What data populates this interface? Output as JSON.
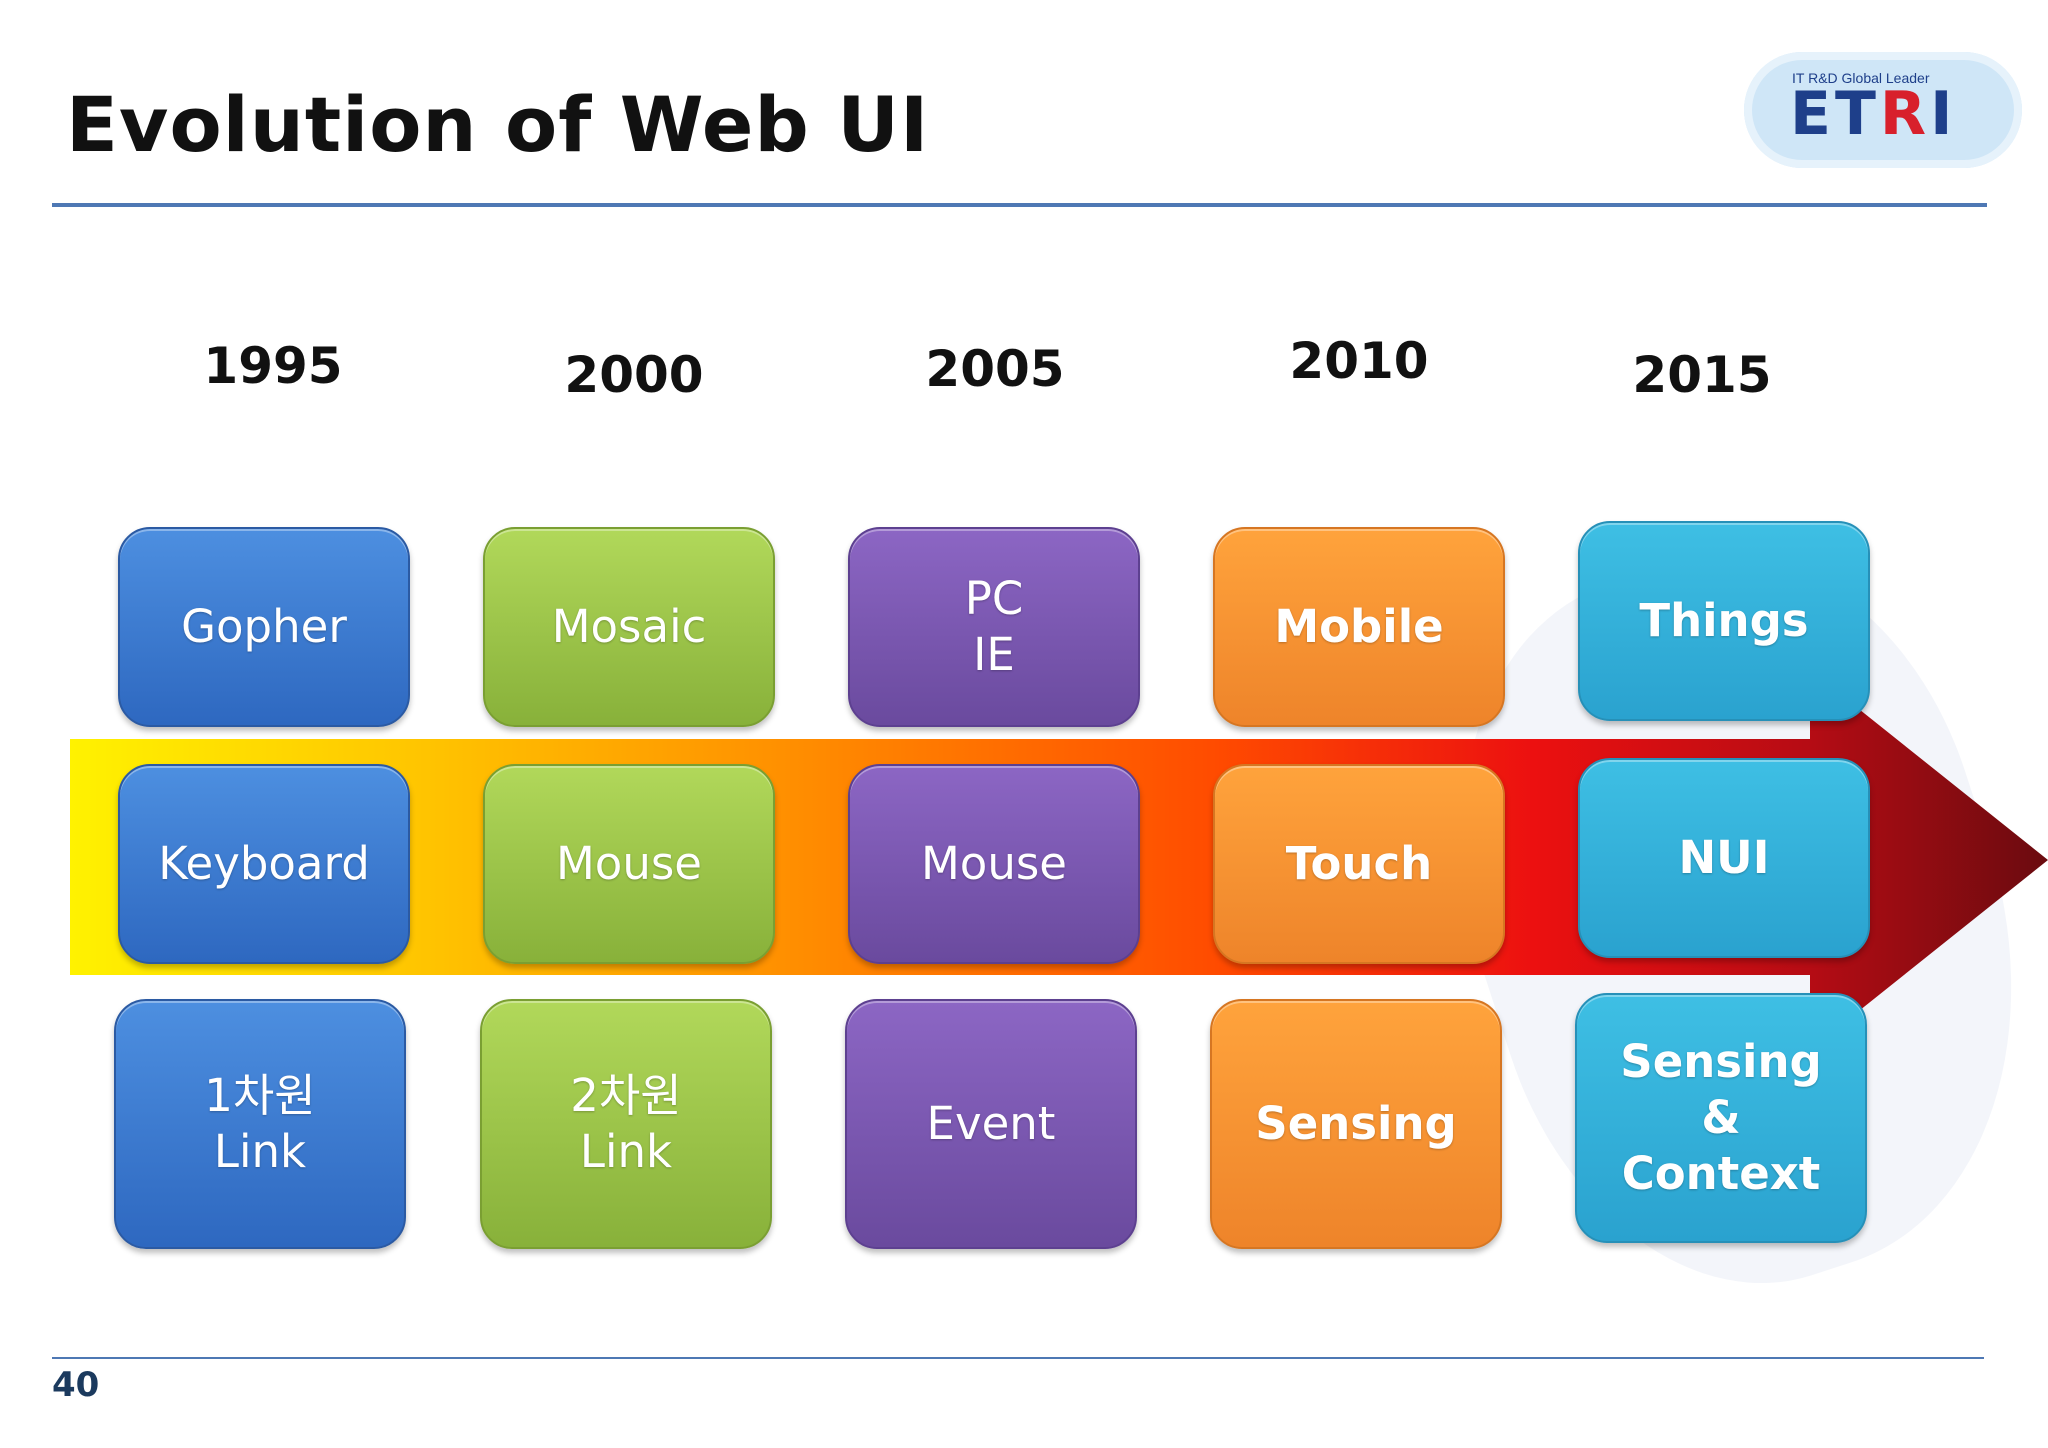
{
  "slide": {
    "title": "Evolution of Web UI",
    "page_number": "40"
  },
  "logo": {
    "tagline": "IT R&D Global Leader",
    "word_main": "ET",
    "word_accent": "R",
    "word_tail": "I"
  },
  "colors": {
    "blue": "#3a7ad4",
    "green": "#9cc44a",
    "purple": "#7b58b3",
    "orange": "#f89430",
    "cyan": "#33b1db",
    "arrow_start": "#fff200",
    "arrow_end": "#7a0f12"
  },
  "columns": [
    {
      "year": "1995",
      "color": "blue",
      "items": [
        "Gopher",
        "Keyboard",
        "1차원\nLink"
      ]
    },
    {
      "year": "2000",
      "color": "green",
      "items": [
        "Mosaic",
        "Mouse",
        "2차원\nLink"
      ]
    },
    {
      "year": "2005",
      "color": "purple",
      "items": [
        "PC\nIE",
        "Mouse",
        "Event"
      ]
    },
    {
      "year": "2010",
      "color": "orange",
      "items": [
        "Mobile",
        "Touch",
        "Sensing"
      ]
    },
    {
      "year": "2015",
      "color": "cyan",
      "items": [
        "Things",
        "NUI",
        "Sensing\n&\nContext"
      ]
    }
  ]
}
